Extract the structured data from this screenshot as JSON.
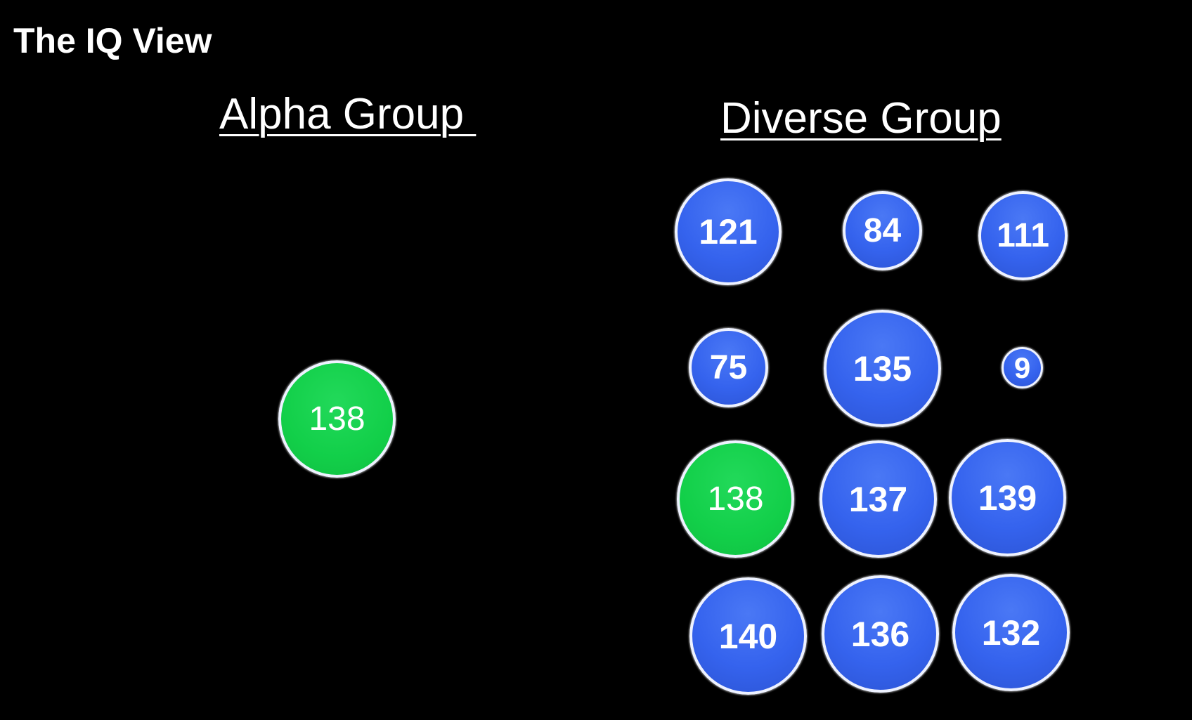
{
  "title": "The IQ View",
  "colors": {
    "background": "#000000",
    "highlight": "#12cf49",
    "member": "#3563ee",
    "outline": "#eef2ff"
  },
  "groups": {
    "alpha": {
      "label": "Alpha Group ",
      "members": [
        {
          "iq": "138",
          "color": "green"
        }
      ]
    },
    "diverse": {
      "label": "Diverse Group",
      "members": [
        {
          "iq": "121",
          "color": "blue"
        },
        {
          "iq": "84",
          "color": "blue"
        },
        {
          "iq": "111",
          "color": "blue"
        },
        {
          "iq": "75",
          "color": "blue"
        },
        {
          "iq": "135",
          "color": "blue"
        },
        {
          "iq": "9",
          "color": "blue"
        },
        {
          "iq": "138",
          "color": "green"
        },
        {
          "iq": "137",
          "color": "blue"
        },
        {
          "iq": "139",
          "color": "blue"
        },
        {
          "iq": "140",
          "color": "blue"
        },
        {
          "iq": "136",
          "color": "blue"
        },
        {
          "iq": "132",
          "color": "blue"
        }
      ]
    }
  }
}
